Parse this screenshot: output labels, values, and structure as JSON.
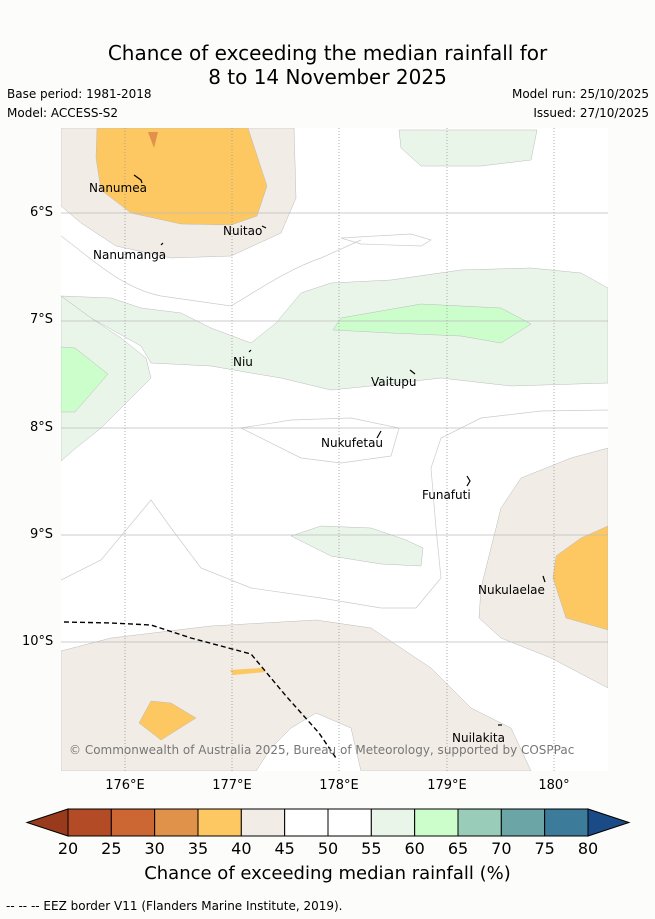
{
  "title": {
    "line1": "Chance of exceeding the median rainfall for",
    "line2": "8 to 14 November 2025"
  },
  "meta": {
    "base_period": "Base period: 1981-2018",
    "model": "Model: ACCESS-S2",
    "model_run": "Model run: 25/10/2025",
    "issued": "Issued: 27/10/2025"
  },
  "axes": {
    "lat_ticks": [
      "6°S",
      "7°S",
      "8°S",
      "9°S",
      "10°S"
    ],
    "lon_ticks": [
      "176°E",
      "177°E",
      "178°E",
      "179°E",
      "180°"
    ]
  },
  "places": [
    "Nanumea",
    "Nuitao",
    "Nanumanga",
    "Niu",
    "Vaitupu",
    "Nukufetau",
    "Funafuti",
    "Nukulaelae",
    "Nuilakita"
  ],
  "credit": "© Commonwealth of Australia 2025, Bureau of Meteorology, supported by COSPPac",
  "colorbar": {
    "title": "Chance of exceeding median rainfall (%)",
    "ticks": [
      "20",
      "25",
      "30",
      "35",
      "40",
      "45",
      "50",
      "55",
      "60",
      "65",
      "70",
      "75",
      "80"
    ],
    "colors": [
      "#b34b26",
      "#cc6633",
      "#e0914a",
      "#fdc862",
      "#f1ece6",
      "#ffffff",
      "#ffffff",
      "#eaf5ea",
      "#ccfecc",
      "#99cdb9",
      "#6ba5a5",
      "#3d7b9b"
    ],
    "low_extend": "#9a3a1d",
    "high_extend": "#1b4b87"
  },
  "footer": "--  --  -- EEZ border V11 (Flanders Marine Institute, 2019)."
}
